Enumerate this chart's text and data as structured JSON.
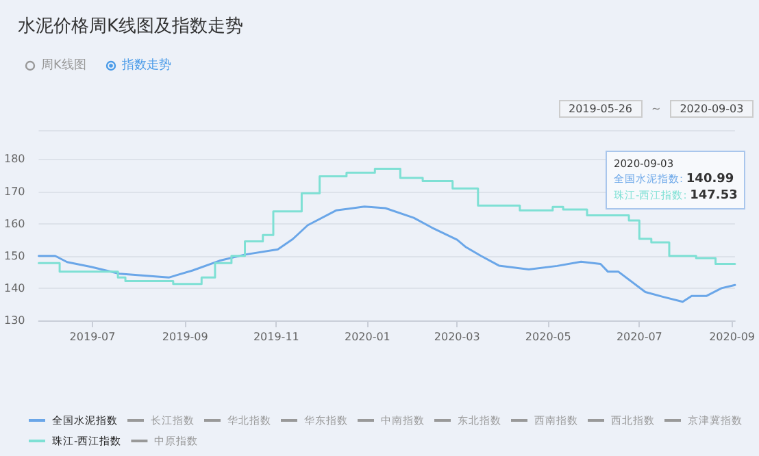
{
  "chart_data": {
    "type": "line",
    "title": "水泥价格周K线图及指数走势",
    "annotations": [
      "周K线图",
      "指数走势",
      "2019-05-26",
      "~",
      "2020-09-03",
      "2020-09-03\n全国水泥指数: 140.99\n珠江-西江指数: 147.53"
    ],
    "xlim": [
      "2019-05-26",
      "2020-09-03"
    ],
    "xticks": [
      {
        "value": "2019-07",
        "label": "2019-07"
      },
      {
        "value": "2019-09",
        "label": "2019-09"
      },
      {
        "value": "2019-11",
        "label": "2019-11"
      },
      {
        "value": "2020-01",
        "label": "2020-01"
      },
      {
        "value": "2020-03",
        "label": "2020-03"
      },
      {
        "value": "2020-05",
        "label": "2020-05"
      },
      {
        "value": "2020-07",
        "label": "2020-07"
      },
      {
        "value": "2020-09",
        "label": "2020-09"
      }
    ],
    "ylim": [
      130,
      189
    ],
    "yticks": [
      130,
      140,
      150,
      160,
      170,
      180,
      {
        "value": 189,
        "label": null
      }
    ],
    "grid": "y",
    "legend": "bottom",
    "marker": "none",
    "line_style": "solid",
    "series": [
      {
        "name": "全国水泥指数",
        "color": "#6aa6e8",
        "x": [
          "2019-05-26",
          "2019-06-06",
          "2019-06-14",
          "2019-06-30",
          "2019-07-19",
          "2019-08-21",
          "2019-09-06",
          "2019-09-24",
          "2019-10-11",
          "2019-11-02",
          "2019-11-12",
          "2019-11-22",
          "2019-12-11",
          "2019-12-30",
          "2020-01-13",
          "2020-02-01",
          "2020-02-13",
          "2020-03-01",
          "2020-03-07",
          "2020-03-17",
          "2020-03-29",
          "2020-04-18",
          "2020-05-07",
          "2020-05-23",
          "2020-06-05",
          "2020-06-10",
          "2020-06-17",
          "2020-07-05",
          "2020-07-17",
          "2020-07-30",
          "2020-08-05",
          "2020-08-15",
          "2020-08-25",
          "2020-09-03"
        ],
        "values": [
          150,
          150,
          148.1,
          146.6,
          144.5,
          143.3,
          145.5,
          148.5,
          150.4,
          152,
          155.2,
          159.5,
          164.1,
          165.3,
          164.8,
          161.8,
          158.8,
          155,
          152.7,
          150,
          147,
          145.8,
          146.9,
          148.2,
          147.5,
          145.1,
          145.1,
          138.8,
          137.3,
          135.8,
          137.6,
          137.6,
          140,
          140.99
        ]
      },
      {
        "name": "长江指数",
        "color": "#999999"
      },
      {
        "name": "华北指数",
        "color": "#999999"
      },
      {
        "name": "华东指数",
        "color": "#999999"
      },
      {
        "name": "中南指数",
        "color": "#999999"
      },
      {
        "name": "东北指数",
        "color": "#999999"
      },
      {
        "name": "西南指数",
        "color": "#999999"
      },
      {
        "name": "西北指数",
        "color": "#999999"
      },
      {
        "name": "京津冀指数",
        "color": "#999999"
      },
      {
        "name": "珠江-西江指数",
        "type": "step",
        "color": "#7ee0d4",
        "x": [
          "2019-05-26",
          "2019-06-09",
          "2019-07-18",
          "2019-07-23",
          "2019-08-24",
          "2019-09-12",
          "2019-09-21",
          "2019-10-02",
          "2019-10-11",
          "2019-10-23",
          "2019-10-30",
          "2019-11-18",
          "2019-11-30",
          "2019-12-18",
          "2020-01-06",
          "2020-01-23",
          "2020-02-07",
          "2020-02-27",
          "2020-03-15",
          "2020-04-12",
          "2020-05-04",
          "2020-05-11",
          "2020-05-27",
          "2020-06-24",
          "2020-07-01",
          "2020-07-09",
          "2020-07-21",
          "2020-08-08",
          "2020-08-21",
          "2020-09-03"
        ],
        "values": [
          147.8,
          145.1,
          143.3,
          142.2,
          141.3,
          143.3,
          147.8,
          150,
          154.5,
          156.5,
          163.8,
          169.4,
          174.7,
          175.8,
          177,
          174.2,
          173.2,
          170.9,
          165.6,
          164.1,
          165.2,
          164.4,
          162.6,
          161,
          155.3,
          154.2,
          150,
          149.3,
          147.53,
          147.53
        ]
      },
      {
        "name": "中原指数",
        "color": "#999999"
      }
    ]
  }
}
